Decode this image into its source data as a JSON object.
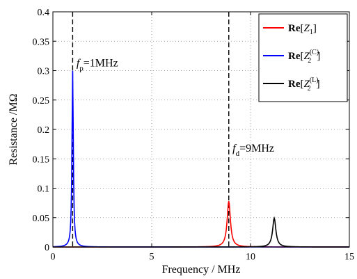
{
  "chart_data": {
    "type": "line",
    "title": "",
    "xlabel": "Frequency / MHz",
    "ylabel": "Resistance /MΩ",
    "xlim": [
      0,
      15
    ],
    "ylim": [
      0,
      0.4
    ],
    "xticks": [
      0,
      5,
      10,
      15
    ],
    "yticks": [
      0,
      0.05,
      0.1,
      0.15,
      0.2,
      0.25,
      0.3,
      0.35,
      0.4
    ],
    "xtick_labels": [
      "0",
      "5",
      "10",
      "15"
    ],
    "ytick_labels": [
      "0",
      "0.05",
      "0.1",
      "0.15",
      "0.2",
      "0.25",
      "0.3",
      "0.35",
      "0.4"
    ],
    "grid": "dotted",
    "legend_position": "top-right",
    "series": [
      {
        "name": "Re[Z1]",
        "name_parts": {
          "prefix": "Re",
          "symbol": "Z",
          "sub": "1",
          "sup": ""
        },
        "color": "#ff0000",
        "peak_x": 8.9,
        "peak_y": 0.078,
        "width": 0.1,
        "samples": [
          [
            8.5,
            0.004
          ],
          [
            8.7,
            0.017
          ],
          [
            8.8,
            0.046
          ],
          [
            8.9,
            0.078
          ],
          [
            9.0,
            0.046
          ],
          [
            9.1,
            0.017
          ],
          [
            9.3,
            0.004
          ]
        ]
      },
      {
        "name": "Re[Z2(C)]",
        "name_parts": {
          "prefix": "Re",
          "symbol": "Z",
          "sub": "2",
          "sup": "(C)"
        },
        "color": "#0000ff",
        "peak_x": 1.0,
        "peak_y": 0.3,
        "width": 0.04,
        "samples": [
          [
            0.8,
            0.005
          ],
          [
            0.9,
            0.05
          ],
          [
            0.96,
            0.18
          ],
          [
            1.0,
            0.3
          ],
          [
            1.04,
            0.18
          ],
          [
            1.1,
            0.05
          ],
          [
            1.2,
            0.005
          ]
        ]
      },
      {
        "name": "Re[Z2(L)]",
        "name_parts": {
          "prefix": "Re",
          "symbol": "Z",
          "sub": "2",
          "sup": "(L)"
        },
        "color": "#000000",
        "peak_x": 11.2,
        "peak_y": 0.049,
        "width": 0.1,
        "samples": [
          [
            10.8,
            0.003
          ],
          [
            11.0,
            0.011
          ],
          [
            11.1,
            0.029
          ],
          [
            11.2,
            0.049
          ],
          [
            11.3,
            0.029
          ],
          [
            11.4,
            0.011
          ],
          [
            11.6,
            0.003
          ]
        ]
      }
    ],
    "vlines": [
      {
        "x": 1.0,
        "style": "dashed",
        "color": "#000000"
      },
      {
        "x": 8.9,
        "style": "dashed",
        "color": "#000000"
      }
    ],
    "annotations": [
      {
        "id": "fp",
        "italic": "f",
        "sub": "p",
        "text": "=1MHz",
        "x": 1.05,
        "y": 0.3
      },
      {
        "id": "fd",
        "italic": "f",
        "sub": "d",
        "text": "=9MHz",
        "x": 8.95,
        "y": 0.155
      }
    ]
  }
}
